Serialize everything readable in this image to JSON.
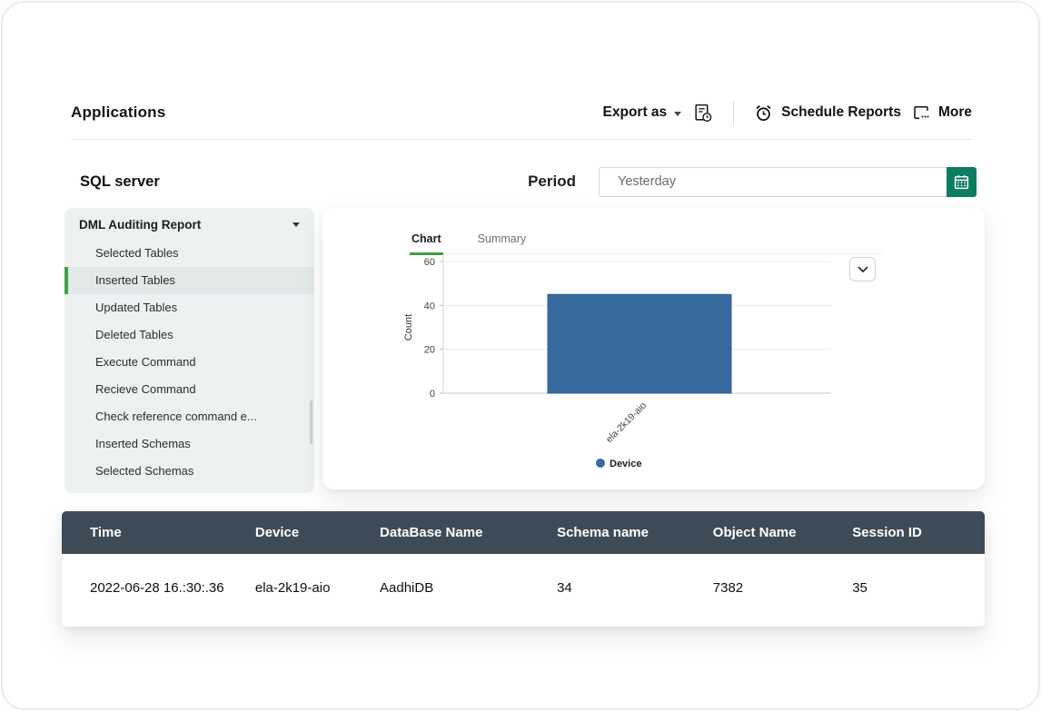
{
  "header": {
    "title": "Applications",
    "export_label": "Export as",
    "schedule_label": "Schedule Reports",
    "more_label": "More"
  },
  "subheader": {
    "report_title": "SQL server",
    "period_label": "Period",
    "period_value": "Yesterday"
  },
  "sidebar": {
    "header": "DML Auditing Report",
    "items": [
      {
        "label": "Selected Tables",
        "selected": false
      },
      {
        "label": "Inserted Tables",
        "selected": true
      },
      {
        "label": "Updated Tables",
        "selected": false
      },
      {
        "label": "Deleted Tables",
        "selected": false
      },
      {
        "label": "Execute Command",
        "selected": false
      },
      {
        "label": "Recieve Command",
        "selected": false
      },
      {
        "label": "Check reference command e...",
        "selected": false
      },
      {
        "label": "Inserted Schemas",
        "selected": false
      },
      {
        "label": "Selected Schemas",
        "selected": false
      }
    ]
  },
  "chart_card": {
    "tabs": [
      {
        "label": "Chart",
        "active": true
      },
      {
        "label": "Summary",
        "active": false
      }
    ]
  },
  "chart_data": {
    "type": "bar",
    "categories": [
      "ela-2k19-aio"
    ],
    "values": [
      45
    ],
    "title": "",
    "xlabel": "",
    "ylabel": "Count",
    "ylim": [
      0,
      60
    ],
    "yticks": [
      0,
      20,
      40,
      60
    ],
    "grid": true,
    "legend_position": "bottom",
    "legend": [
      {
        "label": "Device",
        "color": "#36699e"
      }
    ],
    "bar_color": "#36699e"
  },
  "table": {
    "columns": [
      "Time",
      "Device",
      "DataBase Name",
      "Schema name",
      "Object Name",
      "Session ID"
    ],
    "rows": [
      [
        "2022-06-28 16.:30:.36",
        "ela-2k19-aio",
        "AadhiDB",
        "34",
        "7382",
        "35"
      ]
    ]
  },
  "icons": {
    "export_caret": "caret-down-icon",
    "export_history": "document-clock-icon",
    "schedule": "alarm-clock-icon",
    "more": "window-more-icon",
    "calendar": "calendar-icon",
    "chart_dropdown": "chevron-down-icon",
    "sidebar_caret": "caret-down-icon"
  },
  "colors": {
    "accent_green": "#43a047",
    "tab_underline_green": "#3f9d44",
    "table_header": "#3d4b57",
    "bar_blue": "#36699e",
    "calendar_button": "#0d7c62",
    "sidebar_bg": "#eef1f2"
  }
}
